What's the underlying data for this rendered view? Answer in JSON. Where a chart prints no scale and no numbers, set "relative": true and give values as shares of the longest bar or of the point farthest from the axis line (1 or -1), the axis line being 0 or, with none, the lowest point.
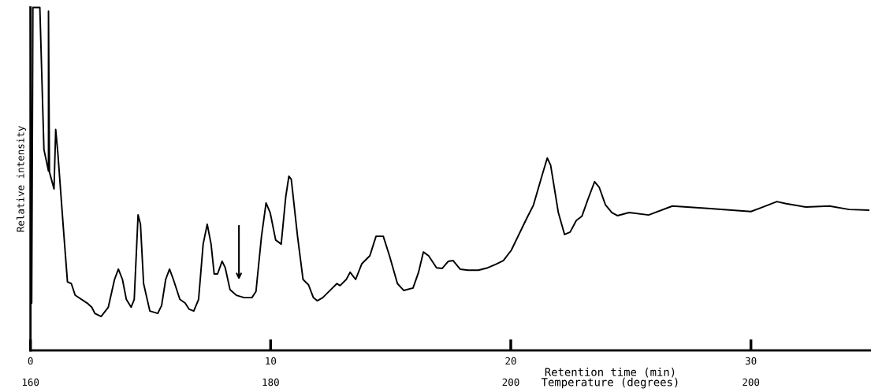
{
  "chart_data": {
    "type": "line",
    "relative": true,
    "ylabel": "Relative intensity",
    "xlabel": "Retention time (min)",
    "annotations": [
      "160",
      "180",
      "200",
      "200",
      "Temperature (degrees)"
    ],
    "xlim": [
      0,
      35
    ],
    "xticks": [
      0,
      10,
      20,
      30
    ],
    "grid": false,
    "marker": "none",
    "line_style": "solid",
    "series": [
      {
        "color": "#000000",
        "x": [
          0,
          0.05,
          0.1,
          0.39,
          0.56,
          0.75,
          0.75,
          0.79,
          0.98,
          1.05,
          1.14,
          1.37,
          1.54,
          1.7,
          1.86,
          2.36,
          2.55,
          2.68,
          2.94,
          3.24,
          3.5,
          3.66,
          3.83,
          3.99,
          4.19,
          4.32,
          4.48,
          4.58,
          4.71,
          4.97,
          5.3,
          5.46,
          5.63,
          5.79,
          5.95,
          6.22,
          6.44,
          6.61,
          6.8,
          7.0,
          7.19,
          7.36,
          7.52,
          7.65,
          7.79,
          7.98,
          8.11,
          8.31,
          8.57,
          8.9,
          9.22,
          9.39,
          9.62,
          9.81,
          9.98,
          10.21,
          10.44,
          10.63,
          10.76,
          10.86,
          11.12,
          11.35,
          11.58,
          11.78,
          11.94,
          12.17,
          12.5,
          12.76,
          12.89,
          13.15,
          13.31,
          13.54,
          13.8,
          14.13,
          14.39,
          14.69,
          14.95,
          15.28,
          15.54,
          15.93,
          16.16,
          16.36,
          16.58,
          16.91,
          17.14,
          17.4,
          17.6,
          17.89,
          18.22,
          18.65,
          19.04,
          19.37,
          19.69,
          20.02,
          20.67,
          20.94,
          21.33,
          21.52,
          21.66,
          21.98,
          22.24,
          22.47,
          22.73,
          22.96,
          23.23,
          23.49,
          23.68,
          23.94,
          24.21,
          24.44,
          24.93,
          25.74,
          26.73,
          28.2,
          30.0,
          30.49,
          31.08,
          31.47,
          32.29,
          33.27,
          34.09,
          34.9
        ],
        "values": [
          1,
          0.138,
          1,
          1,
          0.586,
          0.523,
          0.989,
          0.52,
          0.471,
          0.644,
          0.575,
          0.356,
          0.2,
          0.195,
          0.161,
          0.138,
          0.126,
          0.108,
          0.099,
          0.126,
          0.207,
          0.237,
          0.207,
          0.149,
          0.126,
          0.149,
          0.395,
          0.368,
          0.195,
          0.115,
          0.108,
          0.131,
          0.207,
          0.237,
          0.207,
          0.149,
          0.138,
          0.12,
          0.115,
          0.149,
          0.31,
          0.368,
          0.31,
          0.223,
          0.223,
          0.26,
          0.241,
          0.177,
          0.161,
          0.154,
          0.154,
          0.172,
          0.333,
          0.43,
          0.402,
          0.322,
          0.31,
          0.448,
          0.508,
          0.499,
          0.333,
          0.207,
          0.191,
          0.154,
          0.145,
          0.154,
          0.177,
          0.195,
          0.189,
          0.207,
          0.228,
          0.207,
          0.253,
          0.276,
          0.333,
          0.333,
          0.276,
          0.195,
          0.175,
          0.182,
          0.228,
          0.287,
          0.276,
          0.241,
          0.239,
          0.26,
          0.262,
          0.237,
          0.234,
          0.234,
          0.241,
          0.251,
          0.262,
          0.292,
          0.386,
          0.423,
          0.517,
          0.561,
          0.54,
          0.402,
          0.338,
          0.345,
          0.379,
          0.391,
          0.444,
          0.492,
          0.476,
          0.425,
          0.402,
          0.393,
          0.402,
          0.395,
          0.421,
          0.414,
          0.405,
          0.418,
          0.434,
          0.428,
          0.418,
          0.421,
          0.411,
          0.409
        ]
      }
    ]
  }
}
